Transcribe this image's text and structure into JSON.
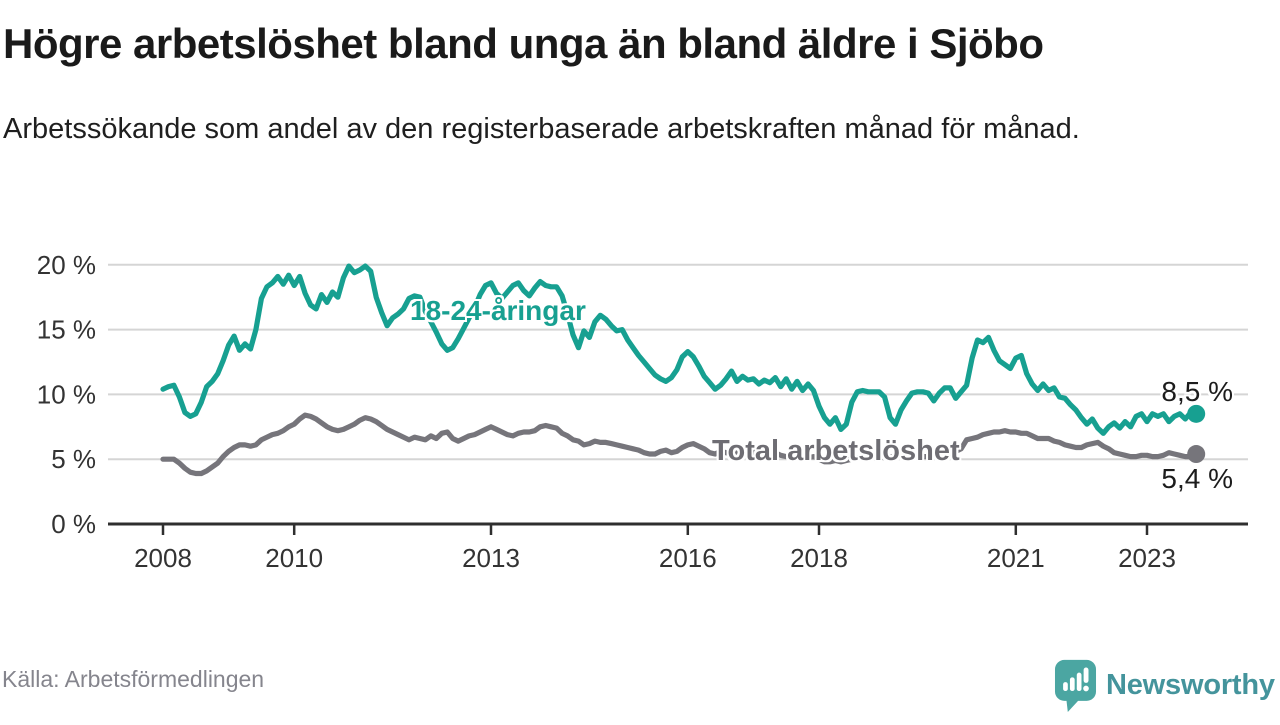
{
  "header": {
    "title": "Högre arbetslöshet bland unga än bland äldre i Sjöbo",
    "subtitle": "Arbetssökande som andel av den registerbaserade arbetskraften månad för månad."
  },
  "chart_data": {
    "type": "line",
    "unit": "%",
    "frequency": "monthly",
    "x_start": "2008-01",
    "x_end": "2023-10",
    "ylim": [
      0,
      20.5
    ],
    "grid": "horizontal",
    "y_ticks": [
      0,
      5,
      10,
      15,
      20
    ],
    "y_tick_labels": [
      "0 %",
      "5 %",
      "10 %",
      "15 %",
      "20 %"
    ],
    "x_tick_years": [
      2008,
      2010,
      2013,
      2016,
      2018,
      2021,
      2023
    ],
    "x_tick_labels": [
      "2008",
      "2010",
      "2013",
      "2016",
      "2018",
      "2021",
      "2023"
    ],
    "colors": {
      "grid": "#d5d5d5",
      "axis": "#2f2f2f",
      "tick_text": "#333333",
      "end_label_text": "#1c1c1c",
      "source_text": "#85858d",
      "brand_text": "#44949c",
      "brand_icon": "#4ba6a2"
    },
    "series": [
      {
        "name": "18-24-åringar",
        "color": "#17a091",
        "end_label": "8,5 %",
        "end_value": 8.5,
        "values": [
          10.4,
          10.6,
          10.7,
          9.8,
          8.6,
          8.3,
          8.5,
          9.4,
          10.6,
          11.0,
          11.6,
          12.6,
          13.8,
          14.5,
          13.4,
          13.9,
          13.5,
          15.0,
          17.4,
          18.3,
          18.6,
          19.1,
          18.5,
          19.2,
          18.4,
          19.1,
          17.8,
          16.9,
          16.6,
          17.7,
          17.1,
          17.9,
          17.5,
          19.0,
          19.9,
          19.4,
          19.6,
          19.9,
          19.5,
          17.5,
          16.3,
          15.3,
          15.9,
          16.2,
          16.6,
          17.4,
          17.6,
          17.5,
          16.4,
          15.6,
          14.8,
          13.9,
          13.4,
          13.6,
          14.3,
          15.1,
          15.9,
          16.7,
          17.7,
          18.4,
          18.6,
          17.8,
          17.4,
          17.9,
          18.4,
          18.6,
          18.0,
          17.6,
          18.2,
          18.7,
          18.4,
          18.3,
          18.3,
          17.6,
          16.2,
          14.6,
          13.6,
          14.9,
          14.4,
          15.6,
          16.1,
          15.8,
          15.3,
          14.9,
          15.0,
          14.2,
          13.6,
          13.0,
          12.5,
          12.0,
          11.5,
          11.2,
          11.0,
          11.3,
          11.9,
          12.9,
          13.3,
          12.9,
          12.2,
          11.4,
          10.9,
          10.4,
          10.7,
          11.2,
          11.8,
          11.0,
          11.4,
          11.1,
          11.2,
          10.8,
          11.1,
          10.9,
          11.3,
          10.6,
          11.2,
          10.4,
          11.0,
          10.3,
          10.8,
          10.3,
          9.1,
          8.2,
          7.7,
          8.2,
          7.3,
          7.7,
          9.4,
          10.2,
          10.3,
          10.2,
          10.2,
          10.2,
          9.8,
          8.2,
          7.7,
          8.8,
          9.5,
          10.1,
          10.2,
          10.2,
          10.1,
          9.5,
          10.1,
          10.5,
          10.5,
          9.7,
          10.2,
          10.7,
          12.8,
          14.2,
          14.0,
          14.4,
          13.4,
          12.6,
          12.3,
          12.0,
          12.8,
          13.0,
          11.6,
          10.8,
          10.3,
          10.8,
          10.3,
          10.5,
          9.8,
          9.7,
          9.2,
          8.8,
          8.2,
          7.7,
          8.1,
          7.4,
          7.0,
          7.5,
          7.8,
          7.4,
          7.9,
          7.5,
          8.3,
          8.5,
          7.9,
          8.5,
          8.3,
          8.5,
          7.9,
          8.3,
          8.5,
          8.1,
          8.6,
          8.5
        ]
      },
      {
        "name": "Total arbetslöshet",
        "color": "#76757b",
        "end_label": "5,4 %",
        "end_value": 5.4,
        "values": [
          5.0,
          5.0,
          5.0,
          4.7,
          4.3,
          4.0,
          3.9,
          3.9,
          4.1,
          4.4,
          4.7,
          5.2,
          5.6,
          5.9,
          6.1,
          6.1,
          6.0,
          6.1,
          6.5,
          6.7,
          6.9,
          7.0,
          7.2,
          7.5,
          7.7,
          8.1,
          8.4,
          8.3,
          8.1,
          7.8,
          7.5,
          7.3,
          7.2,
          7.3,
          7.5,
          7.7,
          8.0,
          8.2,
          8.1,
          7.9,
          7.6,
          7.3,
          7.1,
          6.9,
          6.7,
          6.5,
          6.7,
          6.6,
          6.5,
          6.8,
          6.6,
          7.0,
          7.1,
          6.6,
          6.4,
          6.6,
          6.8,
          6.9,
          7.1,
          7.3,
          7.5,
          7.3,
          7.1,
          6.9,
          6.8,
          7.0,
          7.1,
          7.1,
          7.2,
          7.5,
          7.6,
          7.5,
          7.4,
          7.0,
          6.8,
          6.5,
          6.4,
          6.1,
          6.2,
          6.4,
          6.3,
          6.3,
          6.2,
          6.1,
          6.0,
          5.9,
          5.8,
          5.7,
          5.5,
          5.4,
          5.4,
          5.6,
          5.7,
          5.5,
          5.6,
          5.9,
          6.1,
          6.2,
          6.0,
          5.8,
          5.5,
          5.4,
          5.6,
          5.5,
          5.4,
          5.5,
          5.6,
          5.6,
          5.5,
          5.6,
          5.5,
          5.4,
          5.5,
          5.3,
          5.2,
          5.3,
          5.2,
          5.1,
          5.1,
          5.2,
          5.0,
          4.8,
          4.8,
          4.9,
          4.8,
          4.9,
          5.0,
          5.1,
          5.2,
          5.2,
          5.1,
          5.2,
          5.1,
          5.2,
          5.2,
          5.3,
          5.3,
          5.2,
          5.3,
          5.2,
          5.2,
          5.3,
          5.4,
          5.4,
          5.5,
          5.6,
          5.8,
          6.5,
          6.6,
          6.7,
          6.9,
          7.0,
          7.1,
          7.1,
          7.2,
          7.1,
          7.1,
          7.0,
          7.0,
          6.8,
          6.6,
          6.6,
          6.6,
          6.4,
          6.3,
          6.1,
          6.0,
          5.9,
          5.9,
          6.1,
          6.2,
          6.3,
          6.0,
          5.8,
          5.5,
          5.4,
          5.3,
          5.2,
          5.2,
          5.3,
          5.3,
          5.2,
          5.2,
          5.3,
          5.5,
          5.4,
          5.3,
          5.2,
          5.2,
          5.4
        ]
      }
    ]
  },
  "footer": {
    "source": "Källa: Arbetsförmedlingen",
    "brand": "Newsworthy"
  }
}
